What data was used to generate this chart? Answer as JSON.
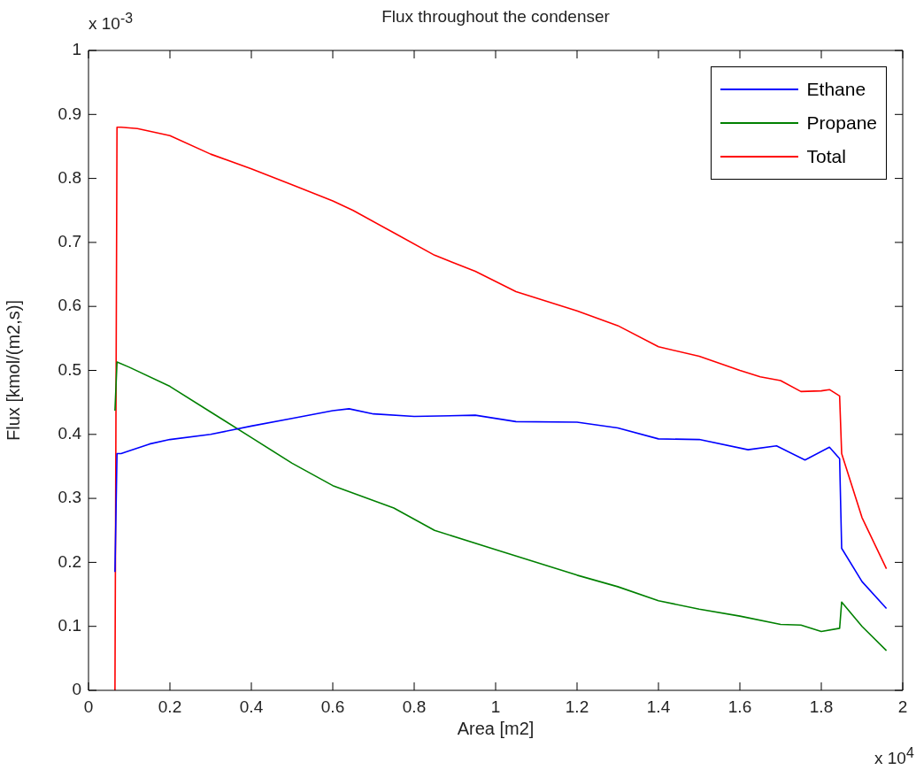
{
  "chart_data": {
    "type": "line",
    "title": "Flux throughout the condenser",
    "xlabel": "Area [m2]",
    "ylabel": "Flux [kmol/(m2,s)]",
    "annotations": [
      "x 10$^{-3}$",
      "x 10$^{4}$"
    ],
    "xlim": [
      0,
      2
    ],
    "xticks": [
      0,
      0.2,
      0.4,
      0.6,
      0.8,
      1,
      1.2,
      1.4,
      1.6,
      1.8,
      2
    ],
    "ylim": [
      0,
      1
    ],
    "yticks": [
      0,
      0.1,
      0.2,
      0.3,
      0.4,
      0.5,
      0.6,
      0.7,
      0.8,
      0.9,
      1
    ],
    "grid": false,
    "legend": "top right",
    "marker": "none",
    "line_style": "solid",
    "series": [
      {
        "name": "Ethane",
        "color": "#0000ff",
        "x": [
          0.065,
          0.07,
          0.08,
          0.15,
          0.2,
          0.3,
          0.4,
          0.5,
          0.6,
          0.64,
          0.7,
          0.8,
          0.95,
          1.05,
          1.2,
          1.3,
          1.4,
          1.5,
          1.62,
          1.69,
          1.76,
          1.82,
          1.845,
          1.85,
          1.9,
          1.96
        ],
        "values": [
          0.185,
          0.37,
          0.37,
          0.385,
          0.392,
          0.4,
          0.413,
          0.425,
          0.437,
          0.44,
          0.432,
          0.428,
          0.43,
          0.42,
          0.419,
          0.41,
          0.393,
          0.392,
          0.376,
          0.382,
          0.36,
          0.38,
          0.362,
          0.222,
          0.17,
          0.128
        ]
      },
      {
        "name": "Propane",
        "color": "#008000",
        "x": [
          0.065,
          0.068,
          0.07,
          0.1,
          0.2,
          0.3,
          0.4,
          0.5,
          0.6,
          0.75,
          0.85,
          1.0,
          1.2,
          1.3,
          1.4,
          1.5,
          1.6,
          1.7,
          1.75,
          1.8,
          1.845,
          1.85,
          1.9,
          1.96
        ],
        "values": [
          0.437,
          null,
          0.513,
          0.505,
          0.475,
          0.435,
          0.395,
          0.355,
          0.32,
          0.285,
          0.25,
          0.22,
          0.18,
          0.162,
          0.14,
          0.127,
          0.116,
          0.103,
          0.102,
          0.092,
          0.097,
          0.138,
          0.1,
          0.062
        ]
      },
      {
        "name": "Total",
        "color": "#ff0000",
        "x": [
          0.065,
          0.07,
          0.08,
          0.12,
          0.2,
          0.3,
          0.4,
          0.5,
          0.6,
          0.65,
          0.75,
          0.85,
          0.95,
          1.05,
          1.2,
          1.3,
          1.4,
          1.5,
          1.6,
          1.65,
          1.7,
          1.75,
          1.8,
          1.82,
          1.845,
          1.85,
          1.9,
          1.96
        ],
        "values": [
          0,
          0.88,
          0.88,
          0.878,
          0.867,
          0.838,
          0.815,
          0.79,
          0.765,
          0.75,
          0.715,
          0.68,
          0.655,
          0.623,
          0.593,
          0.57,
          0.537,
          0.522,
          0.5,
          0.49,
          0.484,
          0.467,
          0.468,
          0.47,
          0.46,
          0.37,
          0.27,
          0.19
        ]
      }
    ]
  }
}
